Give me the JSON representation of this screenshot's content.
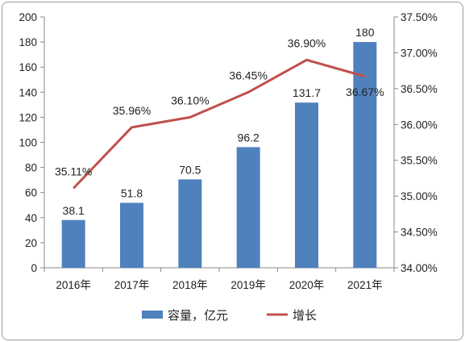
{
  "chart_data": {
    "type": "bar+line",
    "categories": [
      "2016年",
      "2017年",
      "2018年",
      "2019年",
      "2020年",
      "2021年"
    ],
    "series": [
      {
        "name": "容量，亿元",
        "type": "bar",
        "axis": "left",
        "values": [
          38.1,
          51.8,
          70.5,
          96.2,
          131.7,
          180
        ],
        "labels": [
          "38.1",
          "51.8",
          "70.5",
          "96.2",
          "131.7",
          "180"
        ]
      },
      {
        "name": "增长",
        "type": "line",
        "axis": "right",
        "values": [
          35.11,
          35.96,
          36.1,
          36.45,
          36.9,
          36.67
        ],
        "labels": [
          "35.11%",
          "35.96%",
          "36.10%",
          "36.45%",
          "36.90%",
          "36.67%"
        ]
      }
    ],
    "y_left": {
      "min": 0,
      "max": 200,
      "ticks": [
        "0",
        "20",
        "40",
        "60",
        "80",
        "100",
        "120",
        "140",
        "160",
        "180",
        "200"
      ]
    },
    "y_right": {
      "min": 34.0,
      "max": 37.5,
      "ticks": [
        "34.00%",
        "34.50%",
        "35.00%",
        "35.50%",
        "36.00%",
        "36.50%",
        "37.00%",
        "37.50%"
      ]
    },
    "legend_position": "bottom",
    "grid": false
  },
  "colors": {
    "bar": "#4f81bd",
    "line": "#c0504d",
    "axis": "#888888"
  }
}
